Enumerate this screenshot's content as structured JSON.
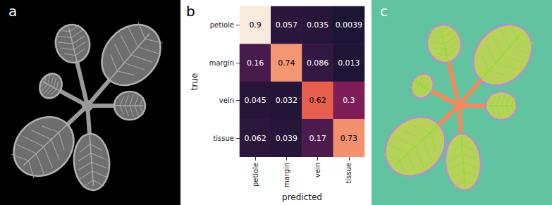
{
  "panel_labels": [
    "a",
    "b",
    "c"
  ],
  "chart_data": {
    "type": "heatmap",
    "x_categories": [
      "petiole",
      "margin",
      "vein",
      "tissue"
    ],
    "y_categories": [
      "petiole",
      "margin",
      "vein",
      "tissue"
    ],
    "xlabel": "predicted",
    "ylabel": "true",
    "cells": [
      [
        0.9,
        0.057,
        0.035,
        0.0039
      ],
      [
        0.16,
        0.74,
        0.086,
        0.013
      ],
      [
        0.045,
        0.032,
        0.62,
        0.3
      ],
      [
        0.062,
        0.039,
        0.17,
        0.73
      ]
    ],
    "data_labels": true
  }
}
